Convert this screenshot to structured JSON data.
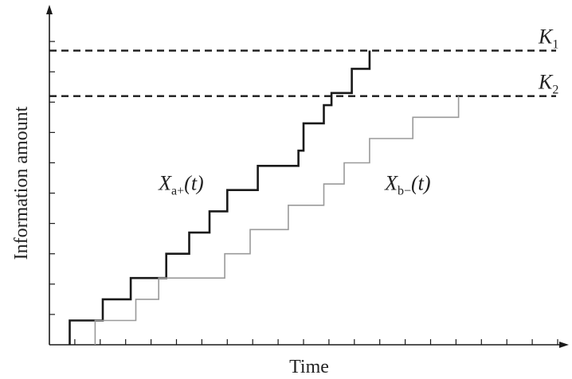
{
  "chart_data": {
    "type": "line",
    "title": "",
    "xlabel": "Time",
    "ylabel": "Information amount",
    "xlim": [
      0,
      20
    ],
    "ylim": [
      0,
      11
    ],
    "x_ticks": [
      1,
      2,
      3,
      4,
      5,
      6,
      7,
      8,
      9,
      10,
      11,
      12,
      13,
      14,
      15,
      16,
      17,
      18,
      19,
      20
    ],
    "y_ticks": [
      1,
      2,
      3,
      4,
      5,
      6,
      7,
      8,
      9,
      10
    ],
    "grid": false,
    "legend": "none",
    "thresholds": [
      {
        "name": "K1",
        "symbol": "K",
        "subscript": "1",
        "value": 9.7,
        "style": "dashed"
      },
      {
        "name": "K2",
        "symbol": "K",
        "subscript": "2",
        "value": 8.2,
        "style": "dashed"
      }
    ],
    "series": [
      {
        "symbol": "X",
        "subscript": "a+",
        "arg": "(t)",
        "color": "#1a1a1a",
        "shape": "step",
        "points": [
          [
            0.8,
            0
          ],
          [
            0.8,
            0.8
          ],
          [
            2.1,
            0.8
          ],
          [
            2.1,
            1.5
          ],
          [
            3.2,
            1.5
          ],
          [
            3.2,
            2.2
          ],
          [
            4.6,
            2.2
          ],
          [
            4.6,
            3.0
          ],
          [
            5.5,
            3.0
          ],
          [
            5.5,
            3.7
          ],
          [
            6.3,
            3.7
          ],
          [
            6.3,
            4.4
          ],
          [
            7.0,
            4.4
          ],
          [
            7.0,
            5.1
          ],
          [
            8.2,
            5.1
          ],
          [
            8.2,
            5.9
          ],
          [
            9.8,
            5.9
          ],
          [
            9.8,
            6.4
          ],
          [
            10.0,
            6.4
          ],
          [
            10.0,
            7.3
          ],
          [
            10.8,
            7.3
          ],
          [
            10.8,
            7.9
          ],
          [
            11.1,
            7.9
          ],
          [
            11.1,
            8.3
          ],
          [
            11.9,
            8.3
          ],
          [
            11.9,
            9.1
          ],
          [
            12.6,
            9.1
          ],
          [
            12.6,
            9.7
          ]
        ]
      },
      {
        "symbol": "X",
        "subscript": "b−",
        "arg": "(t)",
        "color": "#9a9a9a",
        "shape": "step",
        "points": [
          [
            1.8,
            0
          ],
          [
            1.8,
            0.8
          ],
          [
            3.4,
            0.8
          ],
          [
            3.4,
            1.5
          ],
          [
            4.3,
            1.5
          ],
          [
            4.3,
            2.2
          ],
          [
            6.9,
            2.2
          ],
          [
            6.9,
            3.0
          ],
          [
            7.9,
            3.0
          ],
          [
            7.9,
            3.8
          ],
          [
            9.4,
            3.8
          ],
          [
            9.4,
            4.6
          ],
          [
            10.8,
            4.6
          ],
          [
            10.8,
            5.3
          ],
          [
            11.6,
            5.3
          ],
          [
            11.6,
            6.0
          ],
          [
            12.6,
            6.0
          ],
          [
            12.6,
            6.8
          ],
          [
            14.3,
            6.8
          ],
          [
            14.3,
            7.5
          ],
          [
            16.1,
            7.5
          ],
          [
            16.1,
            8.2
          ]
        ]
      }
    ],
    "annotations": [
      {
        "symbol": "X",
        "subscript": "a+",
        "arg": "(t)",
        "x": 4.3,
        "y": 5.1
      },
      {
        "symbol": "X",
        "subscript": "b−",
        "arg": "(t)",
        "x": 13.2,
        "y": 5.1
      }
    ]
  }
}
